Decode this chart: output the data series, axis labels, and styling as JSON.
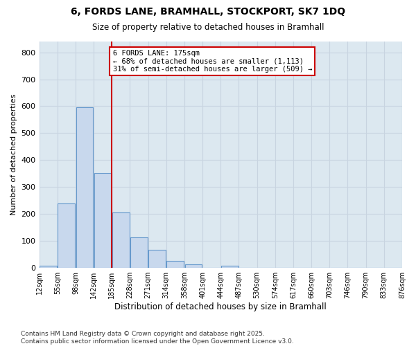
{
  "title_line1": "6, FORDS LANE, BRAMHALL, STOCKPORT, SK7 1DQ",
  "title_line2": "Size of property relative to detached houses in Bramhall",
  "xlabel": "Distribution of detached houses by size in Bramhall",
  "ylabel": "Number of detached properties",
  "categories": [
    "12sqm",
    "55sqm",
    "98sqm",
    "142sqm",
    "185sqm",
    "228sqm",
    "271sqm",
    "314sqm",
    "358sqm",
    "401sqm",
    "444sqm",
    "487sqm",
    "530sqm",
    "574sqm",
    "617sqm",
    "660sqm",
    "703sqm",
    "746sqm",
    "790sqm",
    "833sqm",
    "876sqm"
  ],
  "bar_heights": [
    8,
    238,
    596,
    352,
    205,
    113,
    68,
    25,
    14,
    0,
    8,
    0,
    0,
    0,
    0,
    0,
    0,
    0,
    0,
    0
  ],
  "bar_color": "#c8d8ed",
  "bar_edgecolor": "#6699cc",
  "ylim": [
    0,
    840
  ],
  "yticks": [
    0,
    100,
    200,
    300,
    400,
    500,
    600,
    700,
    800
  ],
  "vline_index": 4,
  "vline_color": "#cc0000",
  "annotation_box_text": "6 FORDS LANE: 175sqm\n← 68% of detached houses are smaller (1,113)\n31% of semi-detached houses are larger (509) →",
  "annotation_box_color": "#cc0000",
  "grid_color": "#c8d4e0",
  "plot_bg_color": "#dce8f0",
  "background_color": "#ffffff",
  "footer_line1": "Contains HM Land Registry data © Crown copyright and database right 2025.",
  "footer_line2": "Contains public sector information licensed under the Open Government Licence v3.0."
}
